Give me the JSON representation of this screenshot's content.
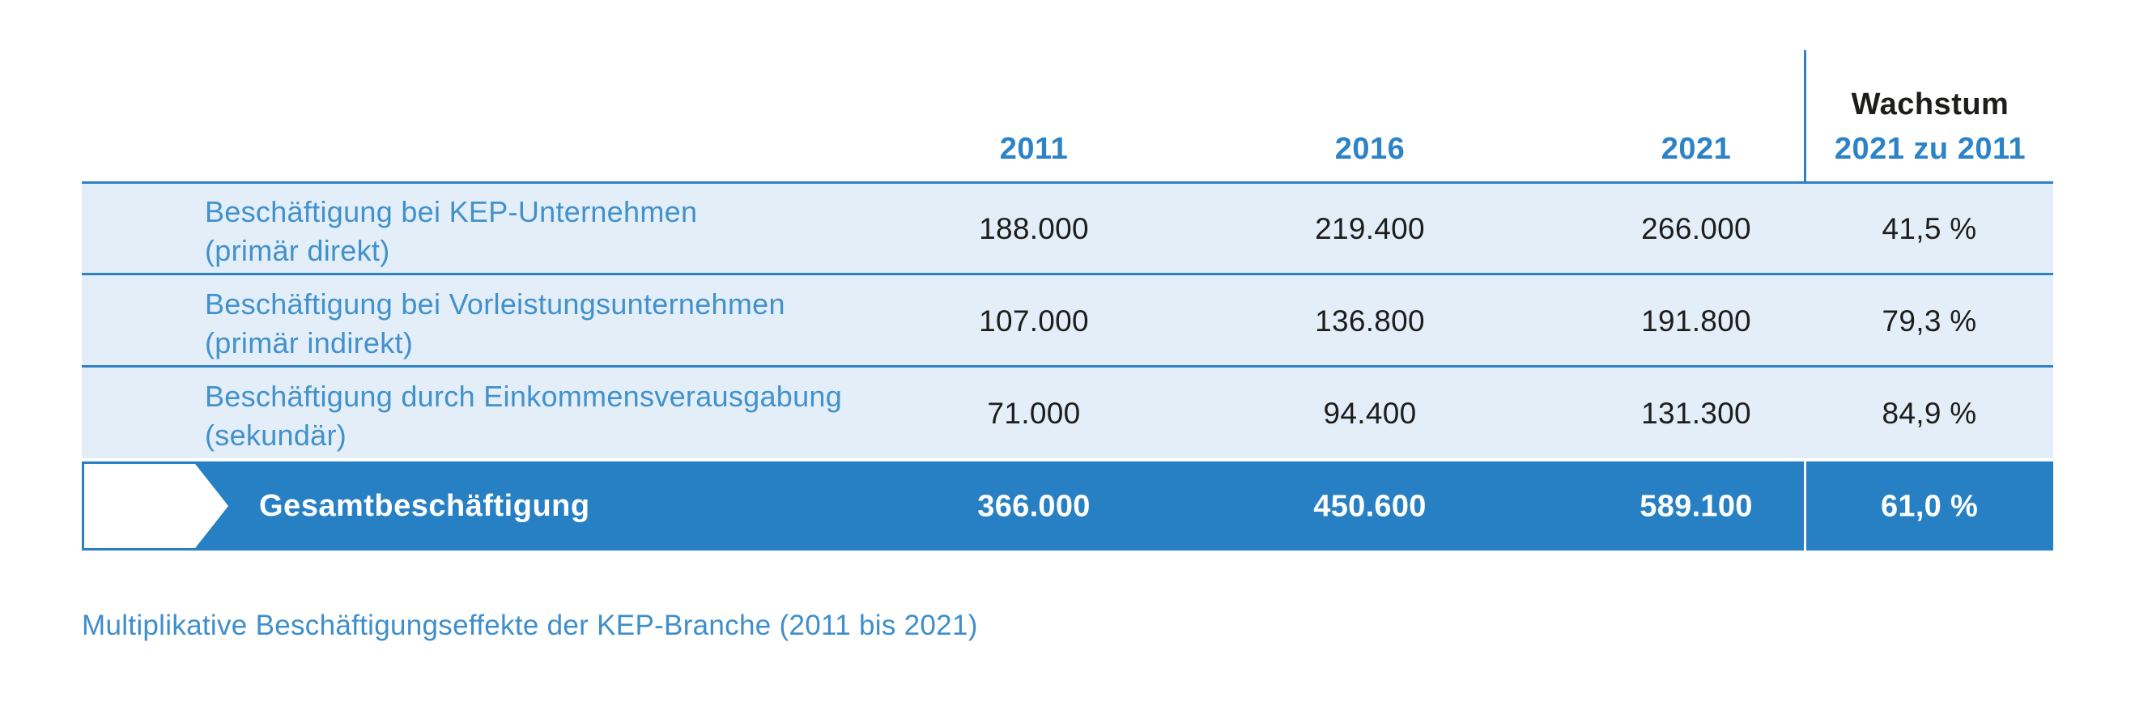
{
  "table": {
    "year_headers": [
      "2011",
      "2016",
      "2021"
    ],
    "growth_header": {
      "line1": "Wachstum",
      "line2": "2021 zu 2011"
    },
    "rows": [
      {
        "label_line1": "Beschäftigung bei KEP-Unternehmen",
        "label_line2": "(primär direkt)",
        "v2011": "188.000",
        "v2016": "219.400",
        "v2021": "266.000",
        "growth": "41,5 %"
      },
      {
        "label_line1": "Beschäftigung bei Vorleistungsunternehmen",
        "label_line2": "(primär indirekt)",
        "v2011": "107.000",
        "v2016": "136.800",
        "v2021": "191.800",
        "growth": "79,3 %"
      },
      {
        "label_line1": "Beschäftigung durch Einkommensverausgabung",
        "label_line2": "(sekundär)",
        "v2011": "71.000",
        "v2016": "94.400",
        "v2021": "131.300",
        "growth": "84,9 %"
      }
    ],
    "total_row": {
      "label": "Gesamtbeschäftigung",
      "v2011": "366.000",
      "v2016": "450.600",
      "v2021": "589.100",
      "growth": "61,0 %"
    },
    "caption": "Multiplikative Beschäftigungseffekte der KEP-Branche (2011 bis 2021)"
  },
  "chart_data": {
    "type": "table",
    "title": "Multiplikative Beschäftigungseffekte der KEP-Branche (2011 bis 2021)",
    "columns": [
      "Effekt",
      "2011",
      "2016",
      "2021",
      "Wachstum 2021 zu 2011"
    ],
    "rows": [
      [
        "Beschäftigung bei KEP-Unternehmen (primär direkt)",
        188000,
        219400,
        266000,
        "41,5 %"
      ],
      [
        "Beschäftigung bei Vorleistungsunternehmen (primär indirekt)",
        107000,
        136800,
        191800,
        "79,3 %"
      ],
      [
        "Beschäftigung durch Einkommensverausgabung (sekundär)",
        71000,
        94400,
        131300,
        "84,9 %"
      ],
      [
        "Gesamtbeschäftigung",
        366000,
        450600,
        589100,
        "61,0 %"
      ]
    ]
  },
  "colors": {
    "accent_blue_text": "#4191cb",
    "header_blue_text": "#2d83c5",
    "border_blue": "#2e81c3",
    "light_row_bg": "#e3eef9",
    "total_row_bg": "#2780c3",
    "dark_text": "#1d1d1b"
  }
}
